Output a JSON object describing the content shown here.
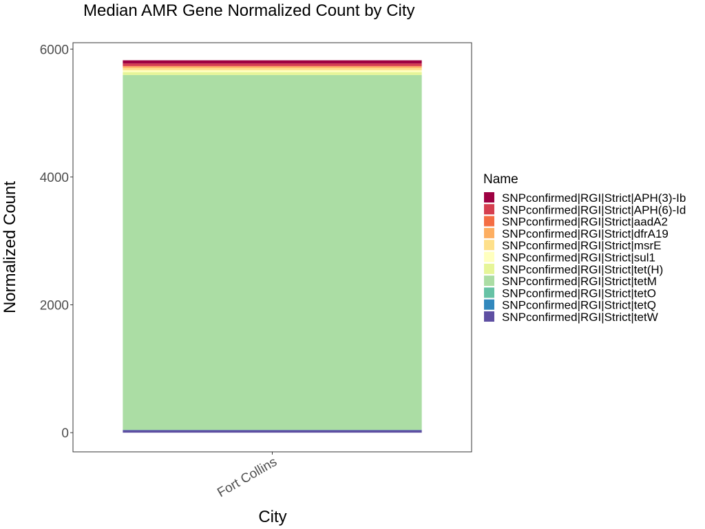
{
  "chart_data": {
    "type": "bar",
    "stacked": true,
    "title": "Median AMR Gene Normalized Count by City",
    "xlabel": "City",
    "ylabel": "Normalized Count",
    "categories": [
      "Fort Collins"
    ],
    "ylim": [
      -300,
      6100
    ],
    "yticks": [
      0,
      2000,
      4000,
      6000
    ],
    "grid": false,
    "legend": {
      "title": "Name",
      "position": "right"
    },
    "series": [
      {
        "name": "SNPconfirmed|RGI|Strict|APH(3)-Ib",
        "color": "#9E0142",
        "values": [
          50
        ]
      },
      {
        "name": "SNPconfirmed|RGI|Strict|APH(6)-Id",
        "color": "#D53E4F",
        "values": [
          40
        ]
      },
      {
        "name": "SNPconfirmed|RGI|Strict|aadA2",
        "color": "#F46D43",
        "values": [
          5
        ]
      },
      {
        "name": "SNPconfirmed|RGI|Strict|dfrA19",
        "color": "#FDAE61",
        "values": [
          25
        ]
      },
      {
        "name": "SNPconfirmed|RGI|Strict|msrE",
        "color": "#FEE08B",
        "values": [
          35
        ]
      },
      {
        "name": "SNPconfirmed|RGI|Strict|sul1",
        "color": "#FFFFBF",
        "values": [
          30
        ]
      },
      {
        "name": "SNPconfirmed|RGI|Strict|tet(H)",
        "color": "#E6F598",
        "values": [
          45
        ]
      },
      {
        "name": "SNPconfirmed|RGI|Strict|tetM",
        "color": "#ABDDA4",
        "values": [
          5550
        ]
      },
      {
        "name": "SNPconfirmed|RGI|Strict|tetO",
        "color": "#66C2A5",
        "values": [
          3
        ]
      },
      {
        "name": "SNPconfirmed|RGI|Strict|tetQ",
        "color": "#3288BD",
        "values": [
          2
        ]
      },
      {
        "name": "SNPconfirmed|RGI|Strict|tetW",
        "color": "#5E4FA2",
        "values": [
          40
        ]
      }
    ]
  }
}
